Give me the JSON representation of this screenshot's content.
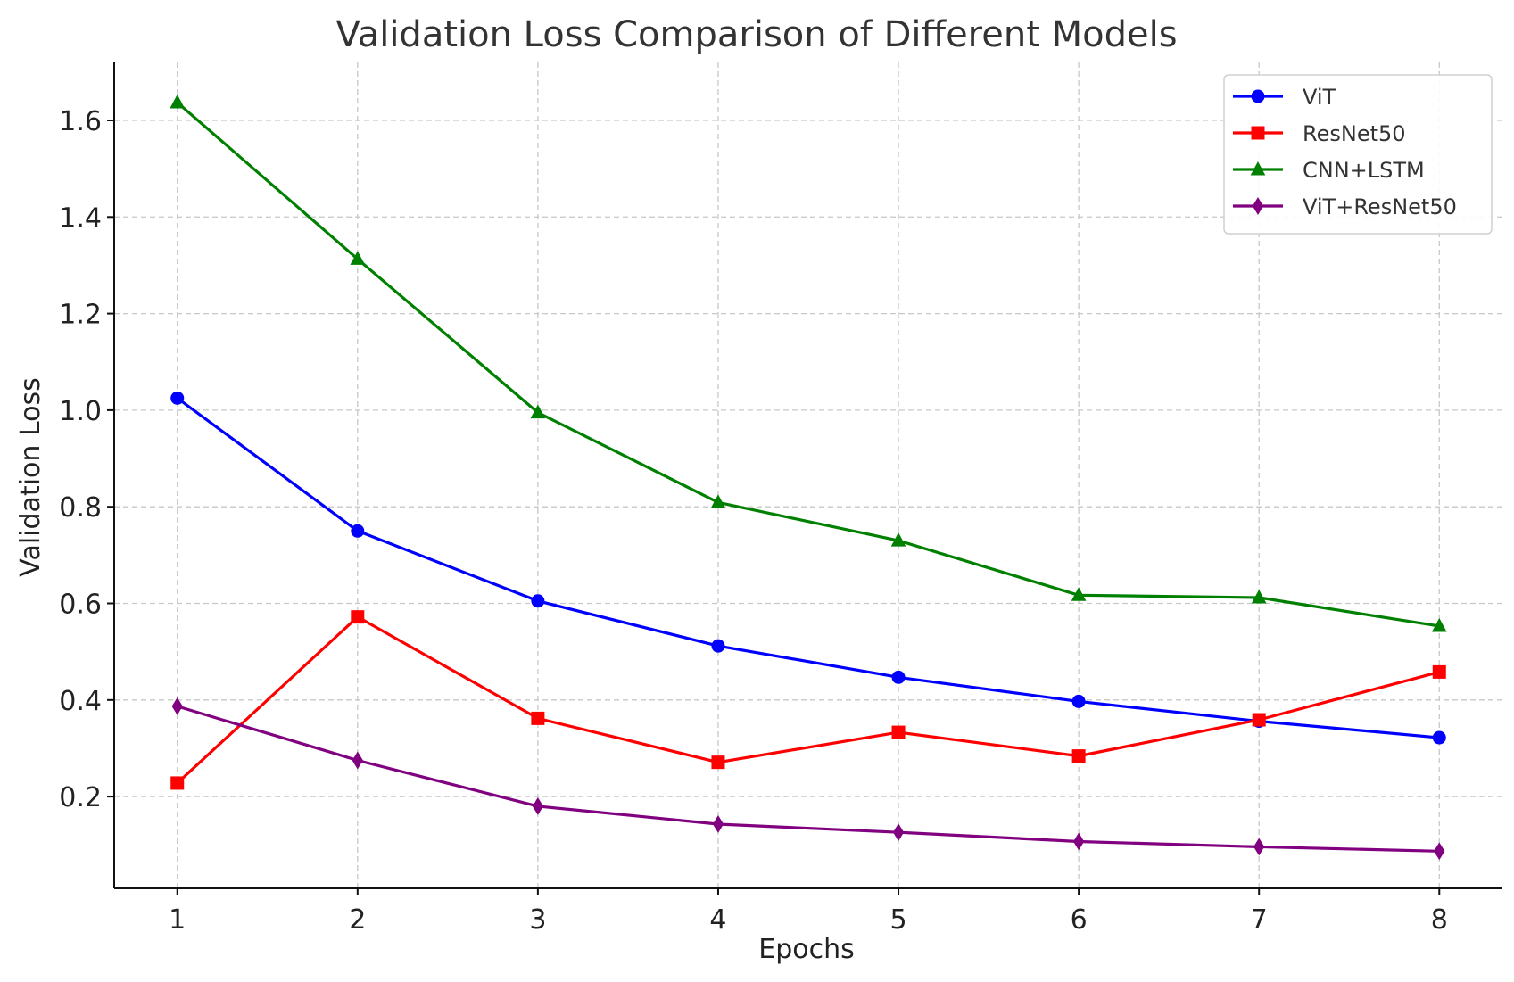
{
  "chart_data": {
    "type": "line",
    "title": "Validation Loss Comparison of Different Models",
    "xlabel": "Epochs",
    "ylabel": "Validation Loss",
    "x": [
      1,
      2,
      3,
      4,
      5,
      6,
      7,
      8
    ],
    "xlim": [
      0.65,
      8.35
    ],
    "ylim": [
      0.01,
      1.72
    ],
    "x_ticks": [
      "1",
      "2",
      "3",
      "4",
      "5",
      "6",
      "7",
      "8"
    ],
    "y_ticks": [
      "0.2",
      "0.4",
      "0.6",
      "0.8",
      "1.0",
      "1.2",
      "1.4",
      "1.6"
    ],
    "grid": true,
    "legend_position": "top-right",
    "series": [
      {
        "name": "ViT",
        "color": "#0000ff",
        "marker": "circle",
        "values": [
          1.025,
          0.75,
          0.605,
          0.512,
          0.447,
          0.397,
          0.356,
          0.322
        ]
      },
      {
        "name": "ResNet50",
        "color": "#ff0000",
        "marker": "square",
        "values": [
          0.228,
          0.572,
          0.362,
          0.271,
          0.333,
          0.284,
          0.359,
          0.458
        ]
      },
      {
        "name": "CNN+LSTM",
        "color": "#008000",
        "marker": "triangle",
        "values": [
          1.637,
          1.313,
          0.995,
          0.809,
          0.73,
          0.617,
          0.612,
          0.553
        ]
      },
      {
        "name": "ViT+ResNet50",
        "color": "#800080",
        "marker": "diamond",
        "values": [
          0.387,
          0.275,
          0.18,
          0.143,
          0.126,
          0.107,
          0.096,
          0.087
        ]
      }
    ]
  }
}
